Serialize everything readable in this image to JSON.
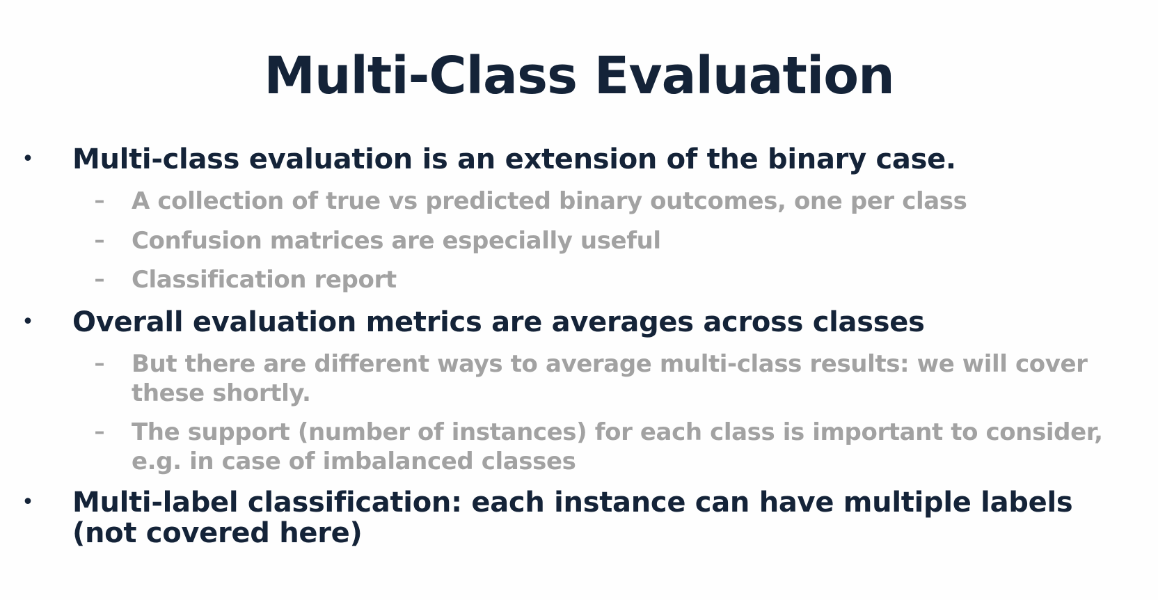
{
  "title": "Multi-Class Evaluation",
  "bullet_marker": "•",
  "dash_marker": "–",
  "bullets": [
    {
      "text": "Multi-class evaluation is an extension of  the binary case.",
      "subs": [
        "A collection of true vs predicted binary outcomes, one per class",
        "Confusion matrices are especially useful",
        "Classification report"
      ]
    },
    {
      "text": "Overall evaluation metrics are averages across classes",
      "subs": [
        "But there are different ways to average multi-class results: we will cover these shortly.",
        "The support (number of instances) for each class is important to consider, e.g. in case of imbalanced classes"
      ]
    },
    {
      "text": "Multi-label classification: each instance can have multiple labels (not covered here)",
      "subs": []
    }
  ],
  "colors": {
    "title": "#142338",
    "bullet_text": "#142338",
    "sub_text": "#a2a2a2",
    "background": "#fefefe"
  }
}
